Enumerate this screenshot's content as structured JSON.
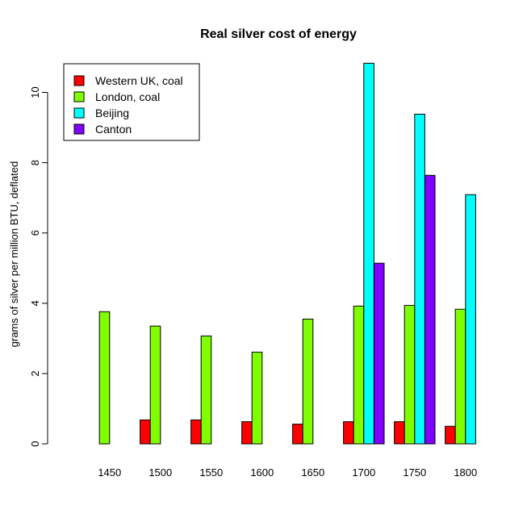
{
  "chart_data": {
    "type": "bar",
    "title": "Real silver cost of energy",
    "xlabel": "",
    "ylabel": "grams of silver per million BTU, deflated",
    "categories": [
      "1450",
      "1500",
      "1550",
      "1600",
      "1650",
      "1700",
      "1750",
      "1800"
    ],
    "series": [
      {
        "name": "Western UK, coal",
        "color": "#ff0000",
        "values": [
          null,
          0.68,
          0.68,
          0.63,
          0.56,
          0.63,
          0.63,
          0.5
        ]
      },
      {
        "name": "London, coal",
        "color": "#80ff00",
        "values": [
          3.76,
          3.35,
          3.07,
          2.61,
          3.55,
          3.92,
          3.94,
          3.83
        ]
      },
      {
        "name": "Beijing",
        "color": "#00ffff",
        "values": [
          null,
          null,
          null,
          null,
          null,
          10.83,
          9.38,
          7.09
        ]
      },
      {
        "name": "Canton",
        "color": "#8000ff",
        "values": [
          null,
          null,
          null,
          null,
          null,
          5.14,
          7.64,
          null
        ]
      }
    ],
    "ylim": [
      0,
      11
    ],
    "yticks": [
      0,
      2,
      4,
      6,
      8,
      10
    ],
    "grid": false,
    "legend": "top-left"
  }
}
